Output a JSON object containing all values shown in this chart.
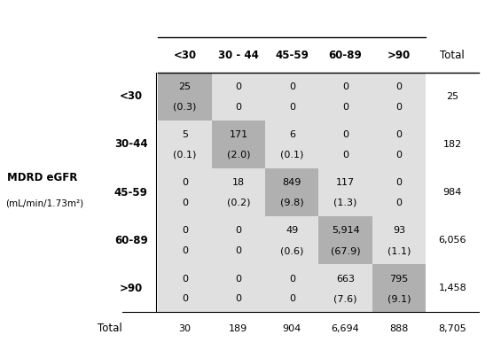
{
  "col_headers": [
    "<30",
    "30 - 44",
    "45-59",
    "60-89",
    ">90",
    "Total"
  ],
  "row_headers": [
    "<30",
    "30-44",
    "45-59",
    "60-89",
    ">90"
  ],
  "row_label_main": "MDRD eGFR",
  "row_label_sub": "(mL/min/1.73m²)",
  "counts": [
    [
      "25",
      "0",
      "0",
      "0",
      "0",
      "25"
    ],
    [
      "5",
      "171",
      "6",
      "0",
      "0",
      "182"
    ],
    [
      "0",
      "18",
      "849",
      "117",
      "0",
      "984"
    ],
    [
      "0",
      "0",
      "49",
      "5,914",
      "93",
      "6,056"
    ],
    [
      "0",
      "0",
      "0",
      "663",
      "795",
      "1,458"
    ],
    [
      "30",
      "189",
      "904",
      "6,694",
      "888",
      "8,705"
    ]
  ],
  "percents": [
    [
      "(0.3)",
      "0",
      "0",
      "0",
      "0"
    ],
    [
      "(0.1)",
      "(2.0)",
      "(0.1)",
      "0",
      "0"
    ],
    [
      "0",
      "(0.2)",
      "(9.8)",
      "(1.3)",
      "0"
    ],
    [
      "0",
      "0",
      "(0.6)",
      "(67.9)",
      "(1.1)"
    ],
    [
      "0",
      "0",
      "0",
      "(7.6)",
      "(9.1)"
    ]
  ],
  "diag_color": "#b0b0b0",
  "offdiag_color": "#e0e0e0",
  "white_color": "#ffffff"
}
